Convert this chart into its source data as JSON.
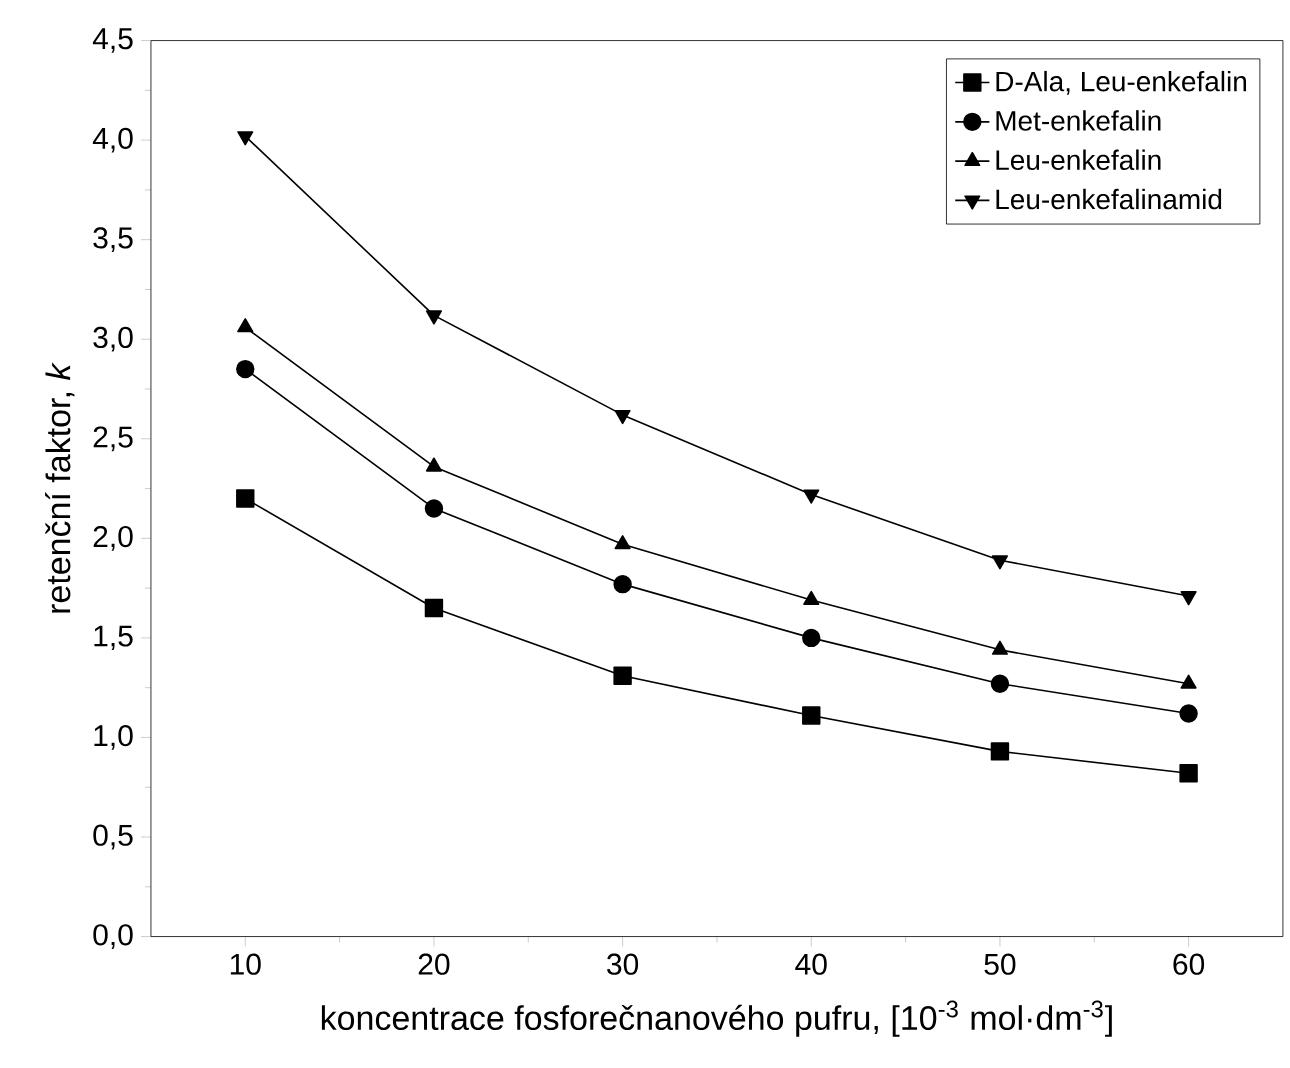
{
  "chart_data": {
    "type": "line",
    "xlabel": "koncentrace fosforečnanového pufru, [10$^{-3}$ mol·dm$^{-3}$]",
    "ylabel": "retenční faktor, *k*",
    "x": [
      10,
      20,
      30,
      40,
      50,
      60
    ],
    "series": [
      {
        "name": "D-Ala, Leu-enkefalin",
        "color": "#000000",
        "marker": "square",
        "values": [
          2.2,
          1.65,
          1.31,
          1.11,
          0.93,
          0.82
        ]
      },
      {
        "name": "Met-enkefalin",
        "color": "#000000",
        "marker": "circle",
        "values": [
          2.85,
          2.15,
          1.77,
          1.5,
          1.27,
          1.12
        ]
      },
      {
        "name": "Leu-enkefalin",
        "color": "#000000",
        "marker": "triangle",
        "values": [
          3.06,
          2.36,
          1.97,
          1.69,
          1.44,
          1.27
        ]
      },
      {
        "name": "Leu-enkefalinamid",
        "color": "#000000",
        "marker": "triangle-down",
        "values": [
          4.02,
          3.12,
          2.62,
          2.22,
          1.89,
          1.71
        ]
      }
    ],
    "xlim": [
      5,
      65
    ],
    "ylim": [
      0,
      4.5
    ],
    "xticks": [
      10,
      20,
      30,
      40,
      50,
      60
    ],
    "yticks": [
      {
        "value": 0,
        "label": "0,0"
      },
      {
        "value": 0.5,
        "label": "0,5"
      },
      {
        "value": 1,
        "label": "1,0"
      },
      {
        "value": 1.5,
        "label": "1,5"
      },
      {
        "value": 2,
        "label": "2,0"
      },
      {
        "value": 2.5,
        "label": "2,5"
      },
      {
        "value": 3,
        "label": "3,0"
      },
      {
        "value": 3.5,
        "label": "3,5"
      },
      {
        "value": 4,
        "label": "4,0"
      },
      {
        "value": 4.5,
        "label": "4,5"
      }
    ],
    "legend": "top right",
    "grid": false,
    "line_style": "solid"
  }
}
